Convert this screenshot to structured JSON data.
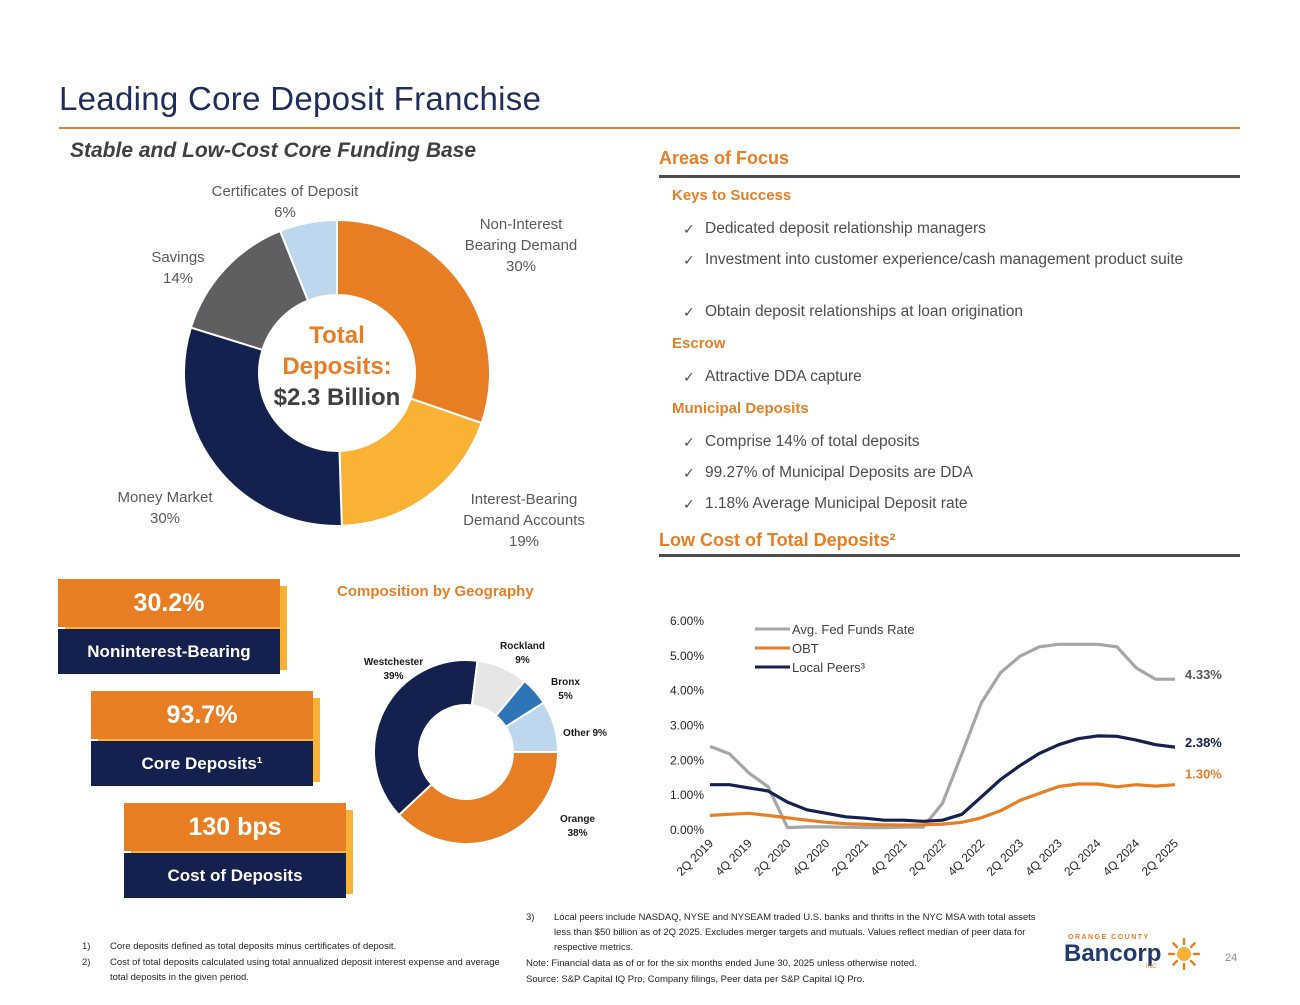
{
  "page": {
    "title": "Leading Core Deposit Franchise",
    "subtitle": "Stable and Low-Cost Core Funding Base",
    "page_number": "24"
  },
  "deposit_mix": {
    "center_line1": "Total",
    "center_line2": "Deposits:",
    "center_line3": "$2.3 Billion",
    "labels": {
      "nib_1": "Non-Interest",
      "nib_2": "Bearing Demand",
      "nib_pct": "30%",
      "ib_1": "Interest-Bearing",
      "ib_2": "Demand Accounts",
      "ib_pct": "19%",
      "mm_1": "Money  Market",
      "mm_pct": "30%",
      "sav_1": "Savings",
      "sav_pct": "14%",
      "cd_1": "Certificates of Deposit",
      "cd_pct": "6%"
    }
  },
  "stats": {
    "s1_value": "30.2%",
    "s1_label": "Noninterest-Bearing",
    "s2_value": "93.7%",
    "s2_label": "Core Deposits¹",
    "s3_value": "130 bps",
    "s3_label": "Cost of Deposits"
  },
  "geography": {
    "title": "Composition by Geography",
    "westchester_name": "Westchester",
    "westchester_pct": "39%",
    "rockland_name": "Rockland",
    "rockland_pct": "9%",
    "bronx_name": "Bronx",
    "bronx_pct": "5%",
    "other_label": "Other 9%",
    "orange_name": "Orange",
    "orange_pct": "38%"
  },
  "focus": {
    "title": "Areas of Focus",
    "keys_title": "Keys to Success",
    "keys_1": "Dedicated deposit relationship managers",
    "keys_2": "Investment into customer experience/cash management product suite",
    "keys_3": "Obtain deposit relationships at loan origination",
    "escrow_title": "Escrow",
    "escrow_1": "Attractive DDA capture",
    "muni_title": "Municipal Deposits",
    "muni_1": "Comprise 14% of total deposits",
    "muni_2": "99.27% of Municipal Deposits are DDA",
    "muni_3": "1.18% Average Municipal Deposit rate"
  },
  "cost_section": {
    "title": "Low Cost of Total Deposits²"
  },
  "footnotes": {
    "f1_num": "1)",
    "f1": "Core deposits defined as total deposits minus certificates of deposit.",
    "f2_num": "2)",
    "f2": "Cost of total deposits calculated using total annualized deposit interest expense and average total deposits in the given period.",
    "f3_num": "3)",
    "f3": "Local peers include NASDAQ, NYSE and NYSEAM traded U.S. banks and thrifts in the NYC MSA with total assets less than $50 billion as of 2Q 2025. Excludes merger targets and mutuals. Values reflect median of peer data for respective metrics.",
    "note": "Note: Financial data as of or for the six months ended June 30, 2025 unless otherwise noted.",
    "source": "Source: S&P Capital IQ Pro, Company filings, Peer data per S&P Capital IQ Pro."
  },
  "logo": {
    "top": "ORANGE COUNTY",
    "name": "Bancorp",
    "inc": "INC"
  },
  "colors": {
    "orange": "#e87e24",
    "gold": "#f9b233",
    "navy": "#14214e",
    "gray": "#5f5f61",
    "lightblue": "#bdd7ee",
    "blue": "#2e75b6",
    "lightgray": "#e6e6e6",
    "fed_line": "#a6a6a6"
  },
  "chart_data": [
    {
      "type": "pie",
      "title": "",
      "slices": [
        {
          "label": "Non-Interest Bearing Demand",
          "value": 30,
          "color": "#e87e24"
        },
        {
          "label": "Interest-Bearing Demand Accounts",
          "value": 19,
          "color": "#f9b233"
        },
        {
          "label": "Money Market",
          "value": 30,
          "color": "#14214e"
        },
        {
          "label": "Savings",
          "value": 14,
          "color": "#5f5f61"
        },
        {
          "label": "Certificates of Deposit",
          "value": 6,
          "color": "#bdd7ee"
        }
      ]
    },
    {
      "type": "pie",
      "title": "Composition by Geography",
      "slices": [
        {
          "label": "Orange",
          "value": 38,
          "color": "#e87e24"
        },
        {
          "label": "Westchester",
          "value": 39,
          "color": "#14214e"
        },
        {
          "label": "Rockland",
          "value": 9,
          "color": "#e6e6e6"
        },
        {
          "label": "Bronx",
          "value": 5,
          "color": "#2e75b6"
        },
        {
          "label": "Other",
          "value": 9,
          "color": "#bdd7ee"
        }
      ]
    },
    {
      "type": "line",
      "title": "Low Cost of Total Deposits²",
      "x_ticks": [
        "2Q 2019",
        "4Q 2019",
        "2Q 2020",
        "4Q 2020",
        "2Q 2021",
        "4Q 2021",
        "2Q 2022",
        "4Q 2022",
        "2Q 2023",
        "4Q 2023",
        "2Q 2024",
        "4Q 2024",
        "2Q 2025"
      ],
      "y_ticks": [
        "0.00%",
        "1.00%",
        "2.00%",
        "3.00%",
        "4.00%",
        "5.00%",
        "6.00%"
      ],
      "ylim": [
        0,
        6
      ],
      "legend_position": "top-left",
      "series": [
        {
          "name": "Avg. Fed Funds Rate",
          "color": "#a6a6a6",
          "end_label": "4.33%",
          "values": [
            2.4,
            2.19,
            1.64,
            1.24,
            0.07,
            0.09,
            0.09,
            0.08,
            0.07,
            0.07,
            0.08,
            0.08,
            0.77,
            2.19,
            3.65,
            4.52,
            4.99,
            5.26,
            5.33,
            5.33,
            5.33,
            5.26,
            4.65,
            4.33,
            4.33
          ]
        },
        {
          "name": "OBT",
          "color": "#e87e24",
          "end_label": "1.30%",
          "values": [
            0.42,
            0.45,
            0.48,
            0.42,
            0.35,
            0.28,
            0.22,
            0.18,
            0.16,
            0.15,
            0.14,
            0.15,
            0.17,
            0.22,
            0.35,
            0.55,
            0.85,
            1.05,
            1.25,
            1.32,
            1.32,
            1.24,
            1.3,
            1.26,
            1.3
          ]
        },
        {
          "name": "Local Peers³",
          "color": "#14214e",
          "end_label": "2.38%",
          "values": [
            1.3,
            1.3,
            1.21,
            1.12,
            0.8,
            0.58,
            0.48,
            0.38,
            0.34,
            0.28,
            0.28,
            0.25,
            0.28,
            0.45,
            0.95,
            1.45,
            1.85,
            2.2,
            2.45,
            2.62,
            2.7,
            2.69,
            2.58,
            2.45,
            2.38
          ]
        }
      ]
    }
  ]
}
